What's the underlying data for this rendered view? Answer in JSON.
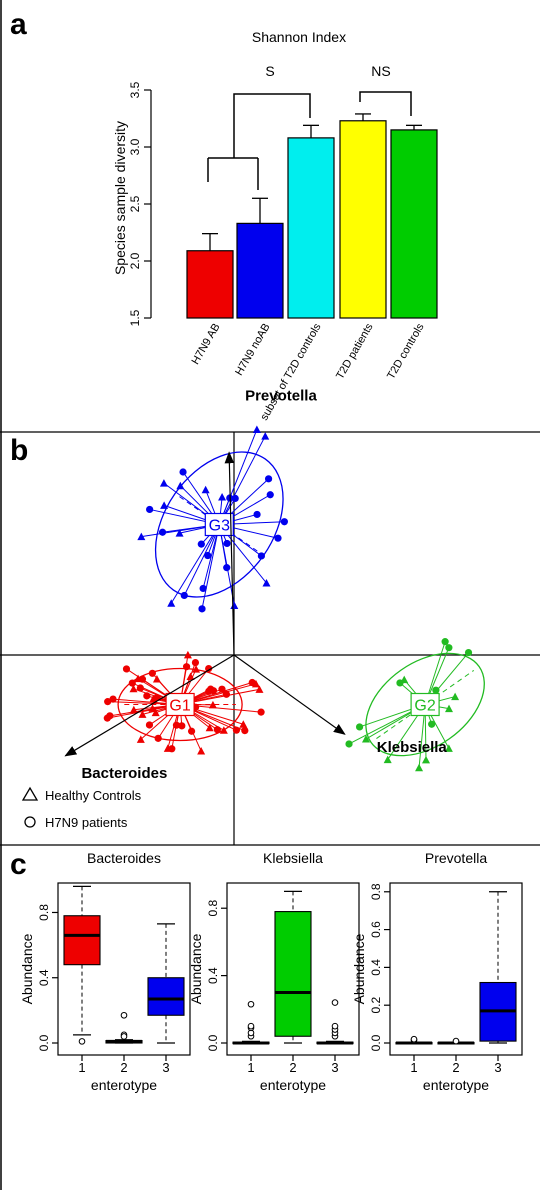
{
  "panels": {
    "a": "a",
    "b": "b",
    "c": "c"
  },
  "colors": {
    "red": "#ee0000",
    "blue": "#0000ee",
    "cyan": "#00eeee",
    "yellow": "#ffff00",
    "green": "#00cc00",
    "green_pca": "#22bb22"
  },
  "chart_data": [
    {
      "panel": "a",
      "type": "bar",
      "title": "Shannon Index",
      "ylabel": "Species sample diversity",
      "categories": [
        "H7N9 AB",
        "H7N9 noAB",
        "subset of T2D controls",
        "T2D patients",
        "T2D controls"
      ],
      "values": [
        2.09,
        2.33,
        3.08,
        3.23,
        3.15
      ],
      "error_upper": [
        2.24,
        2.55,
        3.19,
        3.29,
        3.19
      ],
      "bar_colors": [
        "#ee0000",
        "#0000ee",
        "#00eeee",
        "#ffff00",
        "#00cc00"
      ],
      "ylim": [
        1.5,
        3.5
      ],
      "yticks": [
        1.5,
        2.0,
        2.5,
        3.0,
        3.5
      ],
      "ytick_labels": [
        "1.5",
        "2.0",
        "2.5",
        "3.0",
        "3.5"
      ],
      "annotations": [
        {
          "text": "S",
          "comparison": "H7N9 groups vs subset of T2D controls"
        },
        {
          "text": "NS",
          "comparison": "T2D patients vs T2D controls"
        }
      ],
      "grid": false
    },
    {
      "panel": "b",
      "type": "scatter",
      "title": "",
      "clusters": [
        {
          "label": "G1",
          "color": "#ee0000",
          "center": [
            -0.55,
            -0.55
          ],
          "size": 52
        },
        {
          "label": "G2",
          "color": "#22bb22",
          "center": [
            1.95,
            -0.55
          ],
          "size": 16
        },
        {
          "label": "G3",
          "color": "#0000ee",
          "center": [
            -0.15,
            1.45
          ],
          "size": 30
        }
      ],
      "vectors": [
        {
          "label": "Prevotella",
          "to": [
            -0.05,
            2.25
          ]
        },
        {
          "label": "Bacteroides",
          "to": [
            -1.72,
            -1.12
          ]
        },
        {
          "label": "Klebsiella",
          "to": [
            1.13,
            -0.88
          ]
        }
      ],
      "legend": {
        "placement": "bottom-left",
        "entries": [
          "Healthy Controls",
          "H7N9 patients"
        ],
        "symbols": [
          "triangle",
          "circle"
        ]
      }
    },
    {
      "panel": "c",
      "type": "box",
      "xlabel": "enterotype",
      "ylabel": "Abundance",
      "plots": [
        {
          "title": "Bacteroides",
          "categories": [
            "1",
            "2",
            "3"
          ],
          "box_colors": [
            "#ee0000",
            "#00cc00",
            "#0000ee"
          ],
          "ylim": [
            0,
            0.95
          ],
          "yticks": [
            0,
            0.4,
            0.8
          ],
          "ytick_labels": [
            "0.0",
            "0.4",
            "0.8"
          ],
          "boxes": [
            {
              "min": 0.05,
              "q1": 0.48,
              "median": 0.66,
              "q3": 0.78,
              "max": 0.96,
              "outliers": [
                0.01
              ]
            },
            {
              "min": 0.0,
              "q1": 0.0,
              "median": 0.01,
              "q3": 0.015,
              "max": 0.02,
              "outliers": [
                0.05,
                0.04,
                0.17
              ]
            },
            {
              "min": 0.0,
              "q1": 0.17,
              "median": 0.27,
              "q3": 0.4,
              "max": 0.73,
              "outliers": []
            }
          ]
        },
        {
          "title": "Klebsiella",
          "categories": [
            "1",
            "2",
            "3"
          ],
          "box_colors": [
            "#ee0000",
            "#00cc00",
            "#0000ee"
          ],
          "ylim": [
            0,
            0.92
          ],
          "yticks": [
            0,
            0.4,
            0.8
          ],
          "ytick_labels": [
            "0.0",
            "0.4",
            "0.8"
          ],
          "boxes": [
            {
              "min": 0.0,
              "q1": 0.0,
              "median": 0.0,
              "q3": 0.005,
              "max": 0.01,
              "outliers": [
                0.04,
                0.06,
                0.09,
                0.1,
                0.23
              ]
            },
            {
              "min": 0.0,
              "q1": 0.04,
              "median": 0.3,
              "q3": 0.78,
              "max": 0.9,
              "outliers": []
            },
            {
              "min": 0.0,
              "q1": 0.0,
              "median": 0.0,
              "q3": 0.005,
              "max": 0.01,
              "outliers": [
                0.04,
                0.06,
                0.08,
                0.1,
                0.24
              ]
            }
          ]
        },
        {
          "title": "Prevotella",
          "categories": [
            "1",
            "2",
            "3"
          ],
          "box_colors": [
            "#ee0000",
            "#00cc00",
            "#0000ee"
          ],
          "ylim": [
            0,
            0.82
          ],
          "yticks": [
            0,
            0.2,
            0.4,
            0.6,
            0.8
          ],
          "ytick_labels": [
            "0.0",
            "0.2",
            "0.4",
            "0.6",
            "0.8"
          ],
          "boxes": [
            {
              "min": 0.0,
              "q1": 0.0,
              "median": 0.0,
              "q3": 0.003,
              "max": 0.005,
              "outliers": [
                0.015,
                0.02
              ]
            },
            {
              "min": 0.0,
              "q1": 0.0,
              "median": 0.0,
              "q3": 0.003,
              "max": 0.005,
              "outliers": [
                0.01
              ]
            },
            {
              "min": 0.0,
              "q1": 0.01,
              "median": 0.17,
              "q3": 0.32,
              "max": 0.8,
              "outliers": []
            }
          ]
        }
      ]
    }
  ]
}
